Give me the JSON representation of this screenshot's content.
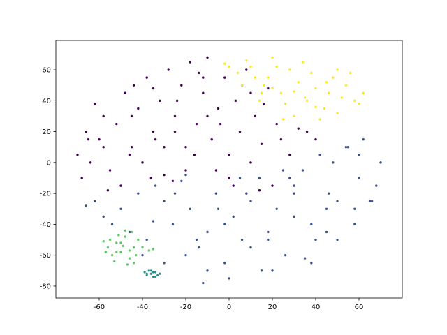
{
  "chart_data": {
    "type": "scatter",
    "xlim": [
      -80,
      80
    ],
    "ylim": [
      -87.7,
      79
    ],
    "xticks": [
      -60,
      -40,
      -20,
      0,
      20,
      40,
      60
    ],
    "yticks": [
      -80,
      -60,
      -40,
      -20,
      0,
      20,
      40,
      60
    ],
    "series": [
      {
        "color": "#440154",
        "x": [
          -70,
          -66,
          -62,
          -58,
          -55,
          -52,
          -48,
          -45,
          -42,
          -40,
          -38,
          -35,
          -32,
          -30,
          -28,
          -25,
          -22,
          -20,
          -18,
          -15,
          -12,
          -10,
          -8,
          -5,
          -2,
          0,
          3,
          5,
          8,
          10,
          12,
          15,
          18,
          20,
          22,
          -68,
          -64,
          -60,
          -56,
          -50,
          -46,
          -44,
          -36,
          -34,
          -26,
          -24,
          -16,
          -14,
          -6,
          -4,
          2,
          6,
          14,
          16,
          24,
          28,
          32,
          36,
          40,
          -30,
          -20,
          -10,
          -12,
          -25,
          -35,
          -45,
          -58,
          -65,
          0,
          10
        ],
        "values": [
          5,
          20,
          38,
          30,
          -5,
          25,
          45,
          10,
          35,
          0,
          55,
          20,
          40,
          -8,
          60,
          30,
          50,
          10,
          65,
          25,
          45,
          68,
          15,
          35,
          55,
          5,
          40,
          20,
          60,
          0,
          30,
          12,
          48,
          -15,
          25,
          -10,
          0,
          15,
          -18,
          -15,
          5,
          50,
          -10,
          15,
          -12,
          40,
          5,
          58,
          -5,
          25,
          -15,
          50,
          -18,
          38,
          15,
          5,
          22,
          20,
          15,
          10,
          -5,
          30,
          55,
          20,
          48,
          30,
          10,
          15,
          -10,
          45
        ]
      },
      {
        "color": "#3b528b",
        "x": [
          -66,
          -62,
          -58,
          -54,
          -50,
          -46,
          -42,
          -38,
          -34,
          -30,
          -26,
          -22,
          -18,
          -14,
          -10,
          -6,
          -2,
          2,
          6,
          10,
          14,
          18,
          22,
          26,
          30,
          34,
          38,
          42,
          46,
          50,
          54,
          58,
          62,
          66,
          70,
          -40,
          -30,
          -20,
          -10,
          0,
          10,
          20,
          30,
          40,
          50,
          60,
          -25,
          -15,
          -5,
          5,
          15,
          25,
          35,
          45,
          55,
          65,
          -35,
          -20,
          -12,
          -2,
          8,
          18,
          28,
          38,
          48,
          58,
          30,
          45,
          60,
          68
        ],
        "values": [
          -28,
          -25,
          -35,
          -40,
          -30,
          -45,
          -20,
          -50,
          -15,
          -25,
          -40,
          -12,
          -30,
          -55,
          -45,
          -20,
          -65,
          -35,
          -50,
          -25,
          -10,
          -45,
          -30,
          -60,
          -15,
          -5,
          -40,
          5,
          -20,
          -50,
          10,
          -30,
          15,
          -25,
          0,
          -60,
          -65,
          -8,
          -70,
          -75,
          -55,
          -70,
          -35,
          -50,
          -25,
          -10,
          -20,
          -50,
          -30,
          -10,
          -70,
          -5,
          -62,
          -30,
          10,
          -25,
          -38,
          -60,
          -78,
          -40,
          -20,
          -50,
          -10,
          -65,
          0,
          -40,
          -20,
          -45,
          5,
          -15
        ]
      },
      {
        "color": "#21918c",
        "x": [
          -36,
          -34,
          -38,
          -35,
          -33,
          -37,
          -36,
          -34,
          -38,
          -35,
          -32,
          -39
        ],
        "values": [
          -70,
          -71,
          -72,
          -74,
          -73,
          -70,
          -72,
          -74,
          -73,
          -71,
          -72,
          -71
        ]
      },
      {
        "color": "#5ec962",
        "x": [
          -56,
          -54,
          -52,
          -50,
          -48,
          -46,
          -44,
          -42,
          -53,
          -49,
          -45,
          -51,
          -47,
          -55,
          -43,
          -58,
          -50,
          -46,
          -40,
          -37,
          -35,
          -48,
          -52,
          -44,
          -57
        ],
        "values": [
          -55,
          -60,
          -52,
          -58,
          -48,
          -62,
          -55,
          -50,
          -64,
          -54,
          -45,
          -47,
          -66,
          -50,
          -60,
          -51,
          -52,
          -57,
          -55,
          -57,
          -56,
          -44,
          -58,
          -65,
          -58
        ]
      },
      {
        "color": "#fde725",
        "x": [
          0,
          4,
          8,
          12,
          16,
          20,
          24,
          28,
          32,
          36,
          40,
          44,
          48,
          52,
          56,
          60,
          -2,
          6,
          14,
          22,
          30,
          38,
          46,
          54,
          62,
          10,
          18,
          26,
          34,
          42,
          50,
          58,
          20,
          30,
          40,
          50,
          35,
          45,
          25,
          15
        ],
        "values": [
          62,
          58,
          66,
          55,
          50,
          68,
          45,
          60,
          52,
          40,
          48,
          35,
          55,
          42,
          58,
          38,
          64,
          50,
          40,
          62,
          30,
          58,
          45,
          50,
          45,
          62,
          55,
          38,
          65,
          28,
          60,
          40,
          48,
          46,
          36,
          32,
          42,
          52,
          28,
          45
        ]
      }
    ]
  }
}
